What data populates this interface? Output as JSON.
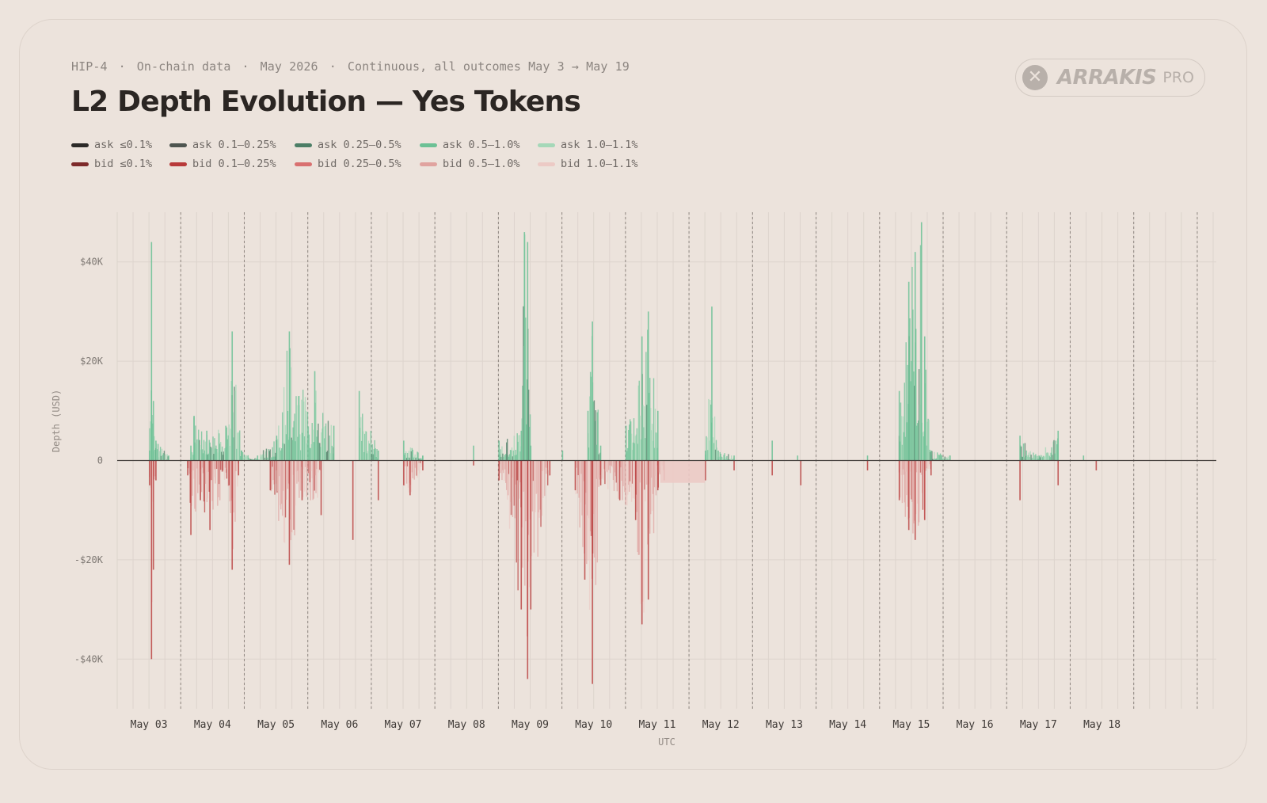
{
  "header": {
    "meta": [
      "HIP-4",
      "On-chain data",
      "May 2026",
      "Continuous, all outcomes May 3 → May 19"
    ],
    "title": "L2 Depth Evolution — Yes Tokens"
  },
  "logo": {
    "icon": "arrakis-x-icon",
    "wordmark": "ARRAKIS",
    "badge": "PRO",
    "color": "#b8b0aa"
  },
  "chart_data": {
    "type": "area",
    "title": "L2 Depth Evolution — Yes Tokens",
    "xlabel": "UTC",
    "ylabel": "Depth (USD)",
    "ylim": [
      -50000,
      50000
    ],
    "yticks": [
      40000,
      20000,
      0,
      -20000,
      -40000
    ],
    "ytick_labels": [
      "$40K",
      "$20K",
      "0",
      "-$20K",
      "-$40K"
    ],
    "x_range_days": [
      2.5,
      19.8
    ],
    "xtick_days": [
      3,
      4,
      5,
      6,
      7,
      8,
      9,
      10,
      11,
      12,
      13,
      14,
      15,
      16,
      17,
      18
    ],
    "xtick_labels": [
      "May 03",
      "May 04",
      "May 05",
      "May 06",
      "May 07",
      "May 08",
      "May 09",
      "May 10",
      "May 11",
      "May 12",
      "May 13",
      "May 14",
      "May 15",
      "May 16",
      "May 17",
      "May 18"
    ],
    "grid": true,
    "legend_position": "top-left",
    "series": [
      {
        "name": "ask ≤0.1%",
        "side": "ask",
        "color": "#2c2a28"
      },
      {
        "name": "ask 0.1–0.25%",
        "side": "ask",
        "color": "#4e5550"
      },
      {
        "name": "ask 0.25–0.5%",
        "side": "ask",
        "color": "#4c7e66"
      },
      {
        "name": "ask 0.5–1.0%",
        "side": "ask",
        "color": "#6cc195"
      },
      {
        "name": "ask 1.0–1.1%",
        "side": "ask",
        "color": "#a5d8b8"
      },
      {
        "name": "bid ≤0.1%",
        "side": "bid",
        "color": "#7d2a2a"
      },
      {
        "name": "bid 0.1–0.25%",
        "side": "bid",
        "color": "#b83a3a"
      },
      {
        "name": "bid 0.25–0.5%",
        "side": "bid",
        "color": "#d97070"
      },
      {
        "name": "bid 0.5–1.0%",
        "side": "bid",
        "color": "#e0a39f"
      },
      {
        "name": "bid 1.0–1.1%",
        "side": "bid",
        "color": "#eccac5"
      }
    ],
    "depth_points_day_usd": [
      [
        3.0,
        2000
      ],
      [
        3.03,
        44000
      ],
      [
        3.06,
        12000
      ],
      [
        3.1,
        4000
      ],
      [
        3.3,
        1000
      ],
      [
        3.65,
        3000
      ],
      [
        3.7,
        9000
      ],
      [
        3.9,
        6000
      ],
      [
        4.2,
        7000
      ],
      [
        4.3,
        26000
      ],
      [
        4.45,
        2000
      ],
      [
        4.7,
        1000
      ],
      [
        5.0,
        5000
      ],
      [
        5.2,
        26000
      ],
      [
        5.35,
        13000
      ],
      [
        5.6,
        18000
      ],
      [
        5.9,
        7000
      ],
      [
        6.3,
        14000
      ],
      [
        6.6,
        2000
      ],
      [
        7.0,
        4000
      ],
      [
        7.3,
        1000
      ],
      [
        8.1,
        3000
      ],
      [
        8.5,
        4000
      ],
      [
        8.85,
        6000
      ],
      [
        8.9,
        46000
      ],
      [
        8.95,
        44000
      ],
      [
        9.0,
        3000
      ],
      [
        9.5,
        2000
      ],
      [
        9.9,
        10000
      ],
      [
        9.97,
        28000
      ],
      [
        10.1,
        3000
      ],
      [
        10.5,
        7000
      ],
      [
        10.75,
        25000
      ],
      [
        10.85,
        30000
      ],
      [
        11.0,
        10000
      ],
      [
        11.75,
        2000
      ],
      [
        11.85,
        31000
      ],
      [
        11.95,
        2000
      ],
      [
        12.2,
        1000
      ],
      [
        12.8,
        4000
      ],
      [
        13.2,
        1000
      ],
      [
        14.3,
        1000
      ],
      [
        14.8,
        14000
      ],
      [
        14.95,
        36000
      ],
      [
        15.05,
        42000
      ],
      [
        15.15,
        48000
      ],
      [
        15.2,
        25000
      ],
      [
        15.3,
        2000
      ],
      [
        15.6,
        1000
      ],
      [
        16.7,
        5000
      ],
      [
        17.0,
        1000
      ],
      [
        17.3,
        6000
      ],
      [
        17.7,
        1000
      ]
    ],
    "bid_points_day_usd": [
      [
        3.0,
        -5000
      ],
      [
        3.03,
        -40000
      ],
      [
        3.06,
        -22000
      ],
      [
        3.1,
        -4000
      ],
      [
        3.6,
        -3000
      ],
      [
        3.65,
        -15000
      ],
      [
        3.8,
        -8000
      ],
      [
        3.95,
        -14000
      ],
      [
        4.25,
        -5000
      ],
      [
        4.3,
        -22000
      ],
      [
        4.4,
        -3000
      ],
      [
        4.9,
        -6000
      ],
      [
        5.2,
        -21000
      ],
      [
        5.4,
        -8000
      ],
      [
        5.7,
        -11000
      ],
      [
        6.2,
        -16000
      ],
      [
        6.6,
        -8000
      ],
      [
        7.0,
        -5000
      ],
      [
        7.1,
        -7000
      ],
      [
        7.3,
        -2000
      ],
      [
        8.1,
        -1000
      ],
      [
        8.5,
        -4000
      ],
      [
        8.85,
        -30000
      ],
      [
        8.95,
        -44000
      ],
      [
        9.0,
        -30000
      ],
      [
        9.3,
        -3000
      ],
      [
        9.7,
        -6000
      ],
      [
        9.85,
        -24000
      ],
      [
        9.97,
        -45000
      ],
      [
        10.1,
        -5000
      ],
      [
        10.4,
        -8000
      ],
      [
        10.65,
        -12000
      ],
      [
        10.75,
        -33000
      ],
      [
        10.85,
        -28000
      ],
      [
        11.0,
        -6000
      ],
      [
        11.1,
        -4000
      ],
      [
        11.75,
        -4000
      ],
      [
        12.2,
        -2000
      ],
      [
        12.8,
        -3000
      ],
      [
        13.25,
        -5000
      ],
      [
        14.3,
        -2000
      ],
      [
        14.8,
        -8000
      ],
      [
        14.95,
        -14000
      ],
      [
        15.05,
        -16000
      ],
      [
        15.2,
        -12000
      ],
      [
        15.3,
        -3000
      ],
      [
        16.7,
        -8000
      ],
      [
        17.3,
        -5000
      ],
      [
        17.9,
        -2000
      ]
    ],
    "bid_plateau": {
      "from_day": 11.05,
      "to_day": 11.75,
      "value": -4500
    }
  }
}
